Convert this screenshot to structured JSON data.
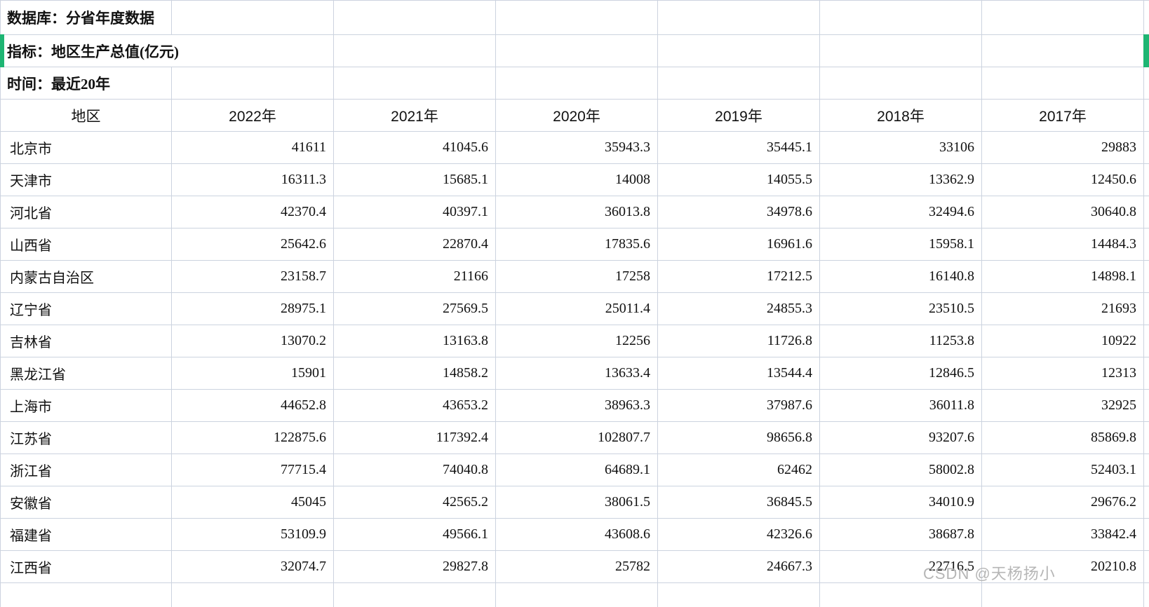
{
  "info": {
    "database": "数据库：分省年度数据",
    "indicator": "指标：地区生产总值(亿元)",
    "time": "时间：最近20年"
  },
  "table": {
    "columns": [
      "地区",
      "2022年",
      "2021年",
      "2020年",
      "2019年",
      "2018年",
      "2017年"
    ],
    "rows": [
      {
        "region": "北京市",
        "values": [
          "41611",
          "41045.6",
          "35943.3",
          "35445.1",
          "33106",
          "29883"
        ]
      },
      {
        "region": "天津市",
        "values": [
          "16311.3",
          "15685.1",
          "14008",
          "14055.5",
          "13362.9",
          "12450.6"
        ]
      },
      {
        "region": "河北省",
        "values": [
          "42370.4",
          "40397.1",
          "36013.8",
          "34978.6",
          "32494.6",
          "30640.8"
        ]
      },
      {
        "region": "山西省",
        "values": [
          "25642.6",
          "22870.4",
          "17835.6",
          "16961.6",
          "15958.1",
          "14484.3"
        ]
      },
      {
        "region": "内蒙古自治区",
        "values": [
          "23158.7",
          "21166",
          "17258",
          "17212.5",
          "16140.8",
          "14898.1"
        ]
      },
      {
        "region": "辽宁省",
        "values": [
          "28975.1",
          "27569.5",
          "25011.4",
          "24855.3",
          "23510.5",
          "21693"
        ]
      },
      {
        "region": "吉林省",
        "values": [
          "13070.2",
          "13163.8",
          "12256",
          "11726.8",
          "11253.8",
          "10922"
        ]
      },
      {
        "region": "黑龙江省",
        "values": [
          "15901",
          "14858.2",
          "13633.4",
          "13544.4",
          "12846.5",
          "12313"
        ]
      },
      {
        "region": "上海市",
        "values": [
          "44652.8",
          "43653.2",
          "38963.3",
          "37987.6",
          "36011.8",
          "32925"
        ]
      },
      {
        "region": "江苏省",
        "values": [
          "122875.6",
          "117392.4",
          "102807.7",
          "98656.8",
          "93207.6",
          "85869.8"
        ]
      },
      {
        "region": "浙江省",
        "values": [
          "77715.4",
          "74040.8",
          "64689.1",
          "62462",
          "58002.8",
          "52403.1"
        ]
      },
      {
        "region": "安徽省",
        "values": [
          "45045",
          "42565.2",
          "38061.5",
          "36845.5",
          "34010.9",
          "29676.2"
        ]
      },
      {
        "region": "福建省",
        "values": [
          "53109.9",
          "49566.1",
          "43608.6",
          "42326.6",
          "38687.8",
          "33842.4"
        ]
      },
      {
        "region": "江西省",
        "values": [
          "32074.7",
          "29827.8",
          "25782",
          "24667.3",
          "22716.5",
          "20210.8"
        ]
      }
    ]
  },
  "watermark": "CSDN @天杨扬小",
  "colors": {
    "grid_line": "#ccd3df",
    "selection_green": "#1eb573",
    "watermark_gray": "#b6b6b6",
    "text": "#111111"
  }
}
